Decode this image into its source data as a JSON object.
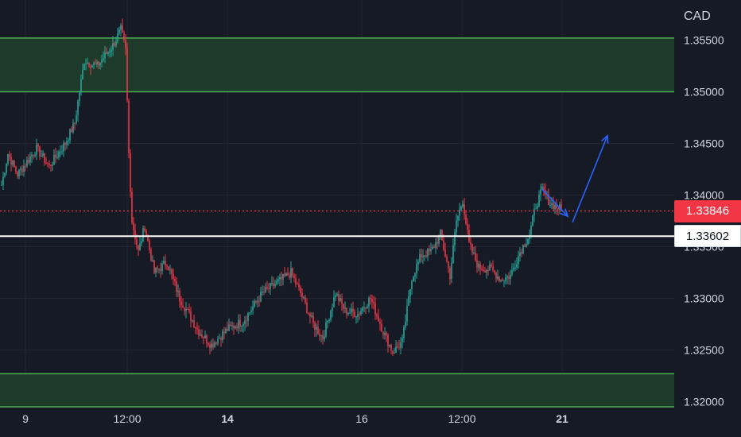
{
  "chart_data": {
    "type": "candlestick",
    "instrument_currency": "CAD",
    "y_axis": {
      "ticks": [
        "1.32000",
        "1.32500",
        "1.33000",
        "1.33500",
        "1.34000",
        "1.34500",
        "1.35000",
        "1.35500"
      ],
      "range": [
        1.3195,
        1.3568
      ]
    },
    "x_axis": {
      "ticks": [
        {
          "label": "9",
          "bold": false
        },
        {
          "label": "12:00",
          "bold": false
        },
        {
          "label": "14",
          "bold": true
        },
        {
          "label": "16",
          "bold": false
        },
        {
          "label": "12:00",
          "bold": false
        },
        {
          "label": "21",
          "bold": true
        }
      ]
    },
    "zones": [
      {
        "name": "supply-zone",
        "top": 1.3552,
        "bottom": 1.35
      },
      {
        "name": "demand-zone",
        "top": 1.3227,
        "bottom": 1.3195
      }
    ],
    "price_lines": [
      {
        "name": "last-price",
        "value": 1.33846,
        "label": "1.33846",
        "color": "#f23645",
        "style": "dotted"
      },
      {
        "name": "reference",
        "value": 1.33602,
        "label": "1.33602",
        "color": "#ffffff",
        "style": "solid"
      }
    ],
    "path": [
      {
        "i": 0,
        "p": 1.341
      },
      {
        "i": 4,
        "p": 1.344
      },
      {
        "i": 10,
        "p": 1.342
      },
      {
        "i": 22,
        "p": 1.3445
      },
      {
        "i": 30,
        "p": 1.3428
      },
      {
        "i": 40,
        "p": 1.345
      },
      {
        "i": 46,
        "p": 1.347
      },
      {
        "i": 52,
        "p": 1.353
      },
      {
        "i": 60,
        "p": 1.3525
      },
      {
        "i": 70,
        "p": 1.3545
      },
      {
        "i": 75,
        "p": 1.356
      },
      {
        "i": 78,
        "p": 1.354
      },
      {
        "i": 80,
        "p": 1.344
      },
      {
        "i": 82,
        "p": 1.3375
      },
      {
        "i": 86,
        "p": 1.3345
      },
      {
        "i": 90,
        "p": 1.337
      },
      {
        "i": 96,
        "p": 1.3325
      },
      {
        "i": 104,
        "p": 1.3335
      },
      {
        "i": 112,
        "p": 1.33
      },
      {
        "i": 124,
        "p": 1.3268
      },
      {
        "i": 132,
        "p": 1.3255
      },
      {
        "i": 142,
        "p": 1.327
      },
      {
        "i": 152,
        "p": 1.3278
      },
      {
        "i": 164,
        "p": 1.3305
      },
      {
        "i": 176,
        "p": 1.3318
      },
      {
        "i": 182,
        "p": 1.3325
      },
      {
        "i": 188,
        "p": 1.3305
      },
      {
        "i": 196,
        "p": 1.3275
      },
      {
        "i": 202,
        "p": 1.3262
      },
      {
        "i": 210,
        "p": 1.3305
      },
      {
        "i": 216,
        "p": 1.3288
      },
      {
        "i": 224,
        "p": 1.3285
      },
      {
        "i": 232,
        "p": 1.33
      },
      {
        "i": 240,
        "p": 1.3268
      },
      {
        "i": 246,
        "p": 1.3248
      },
      {
        "i": 252,
        "p": 1.3258
      },
      {
        "i": 258,
        "p": 1.332
      },
      {
        "i": 264,
        "p": 1.3342
      },
      {
        "i": 270,
        "p": 1.3345
      },
      {
        "i": 276,
        "p": 1.3362
      },
      {
        "i": 282,
        "p": 1.3322
      },
      {
        "i": 286,
        "p": 1.3375
      },
      {
        "i": 290,
        "p": 1.3395
      },
      {
        "i": 294,
        "p": 1.3352
      },
      {
        "i": 300,
        "p": 1.333
      },
      {
        "i": 308,
        "p": 1.3328
      },
      {
        "i": 314,
        "p": 1.3318
      },
      {
        "i": 320,
        "p": 1.3322
      },
      {
        "i": 326,
        "p": 1.3345
      },
      {
        "i": 332,
        "p": 1.3362
      },
      {
        "i": 336,
        "p": 1.339
      },
      {
        "i": 340,
        "p": 1.3405
      },
      {
        "i": 345,
        "p": 1.3392
      },
      {
        "i": 352,
        "p": 1.3386
      }
    ],
    "annotations": [
      {
        "name": "down-arrow",
        "from": [
          340,
          1.34055
        ],
        "to": [
          356,
          1.33795
        ]
      },
      {
        "name": "up-arrow",
        "from": [
          359,
          1.33735
        ],
        "to": [
          381,
          1.34575
        ]
      }
    ]
  }
}
